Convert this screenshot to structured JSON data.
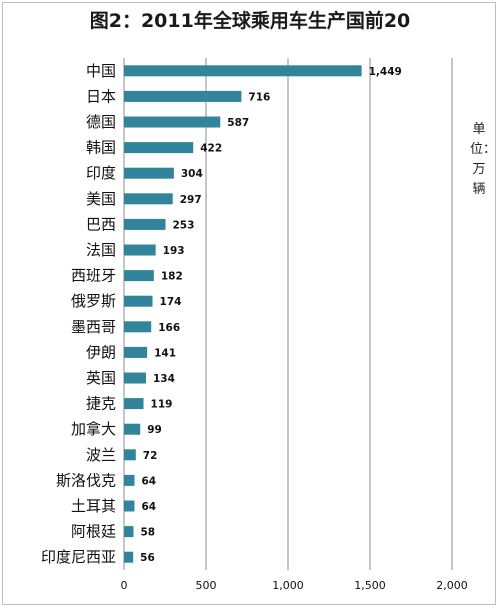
{
  "chart_data": {
    "type": "bar",
    "orientation": "horizontal",
    "title": "图2：2011年全球乘用车生产国前20",
    "unit_label": "单位：万辆",
    "categories": [
      "中国",
      "日本",
      "德国",
      "韩国",
      "印度",
      "美国",
      "巴西",
      "法国",
      "西班牙",
      "俄罗斯",
      "墨西哥",
      "伊朗",
      "英国",
      "捷克",
      "加拿大",
      "波兰",
      "斯洛伐克",
      "土耳其",
      "阿根廷",
      "印度尼西亚"
    ],
    "values": [
      1449,
      716,
      587,
      422,
      304,
      297,
      253,
      193,
      182,
      174,
      166,
      141,
      134,
      119,
      99,
      72,
      64,
      64,
      58,
      56
    ],
    "value_labels": [
      "1,449",
      "716",
      "587",
      "422",
      "304",
      "297",
      "253",
      "193",
      "182",
      "174",
      "166",
      "141",
      "134",
      "119",
      "99",
      "72",
      "64",
      "64",
      "58",
      "56"
    ],
    "xlim": [
      0,
      2000
    ],
    "xticks": [
      0,
      500,
      1000,
      1500,
      2000
    ],
    "xtick_labels": [
      "0",
      "500",
      "1,000",
      "1,500",
      "2,000"
    ],
    "grid": true,
    "bar_color": "#31849b"
  }
}
